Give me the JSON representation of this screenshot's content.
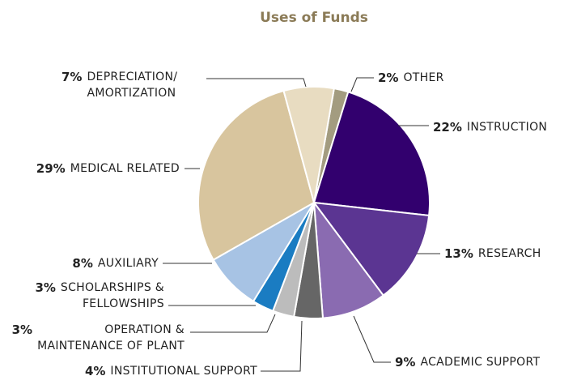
{
  "chart_data": {
    "type": "pie",
    "title": "Uses of Funds",
    "categories": [
      "OTHER",
      "INSTRUCTION",
      "RESEARCH",
      "ACADEMIC SUPPORT",
      "INSTITUTIONAL SUPPORT",
      "OPERATION &\nMAINTENANCE OF PLANT",
      "SCHOLARSHIPS &\nFELLOWSHIPS",
      "AUXILIARY",
      "MEDICAL RELATED",
      "DEPRECIATION/\nAMORTIZATION"
    ],
    "values": [
      2,
      22,
      13,
      9,
      4,
      3,
      3,
      8,
      29,
      7
    ],
    "value_labels": [
      "2%",
      "22%",
      "13%",
      "9%",
      "4%",
      "3%",
      "3%",
      "8%",
      "29%",
      "7%"
    ],
    "colors": [
      "#a39c80",
      "#32006e",
      "#5b3592",
      "#8a6bb1",
      "#666666",
      "#bcbcbc",
      "#1a7cc2",
      "#a7c3e4",
      "#d8c59e",
      "#e8dcc1"
    ]
  }
}
